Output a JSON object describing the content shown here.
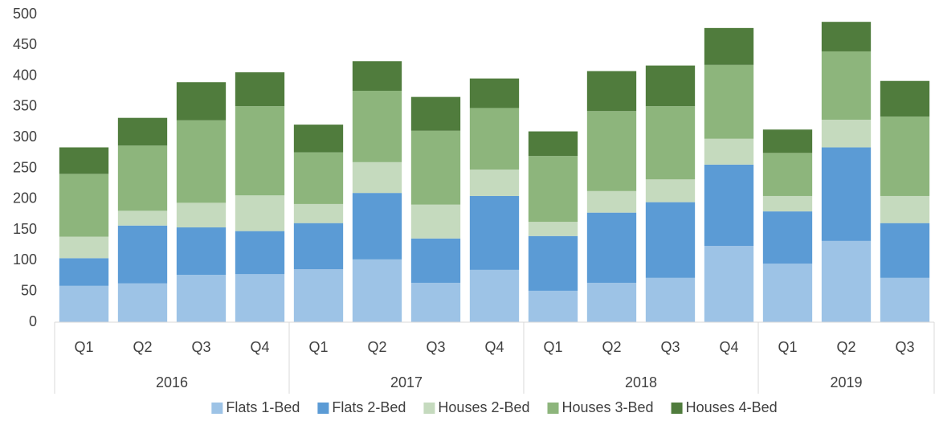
{
  "chart_data": {
    "type": "stacked_bar",
    "categories": [
      "Q1",
      "Q2",
      "Q3",
      "Q4",
      "Q1",
      "Q2",
      "Q3",
      "Q4",
      "Q1",
      "Q2",
      "Q3",
      "Q4",
      "Q1",
      "Q2",
      "Q3"
    ],
    "x_groups": [
      {
        "label": "2016",
        "size": 4
      },
      {
        "label": "2017",
        "size": 4
      },
      {
        "label": "2018",
        "size": 4
      },
      {
        "label": "2019",
        "size": 3
      }
    ],
    "series": [
      {
        "name": "Flats 1-Bed",
        "color": "#9dc3e6",
        "values": [
          59,
          63,
          77,
          78,
          86,
          102,
          64,
          85,
          51,
          64,
          72,
          124,
          95,
          132,
          72
        ]
      },
      {
        "name": "Flats 2-Bed",
        "color": "#5b9bd5",
        "values": [
          45,
          94,
          77,
          70,
          75,
          108,
          72,
          120,
          89,
          114,
          123,
          132,
          85,
          152,
          89
        ]
      },
      {
        "name": "Houses 2-Bed",
        "color": "#c5dabe",
        "values": [
          35,
          24,
          40,
          58,
          31,
          50,
          55,
          43,
          23,
          35,
          37,
          42,
          25,
          45,
          44
        ]
      },
      {
        "name": "Houses 3-Bed",
        "color": "#8db57c",
        "values": [
          102,
          106,
          134,
          145,
          84,
          116,
          120,
          100,
          107,
          130,
          119,
          120,
          70,
          111,
          129
        ]
      },
      {
        "name": "Houses 4-Bed",
        "color": "#507c3d",
        "values": [
          43,
          45,
          62,
          55,
          45,
          48,
          55,
          48,
          40,
          65,
          66,
          60,
          38,
          48,
          58
        ]
      }
    ],
    "ylim": [
      0,
      500
    ],
    "yticks": [
      0,
      50,
      100,
      150,
      200,
      250,
      300,
      350,
      400,
      450,
      500
    ],
    "grid": false,
    "legend": "bottom"
  }
}
